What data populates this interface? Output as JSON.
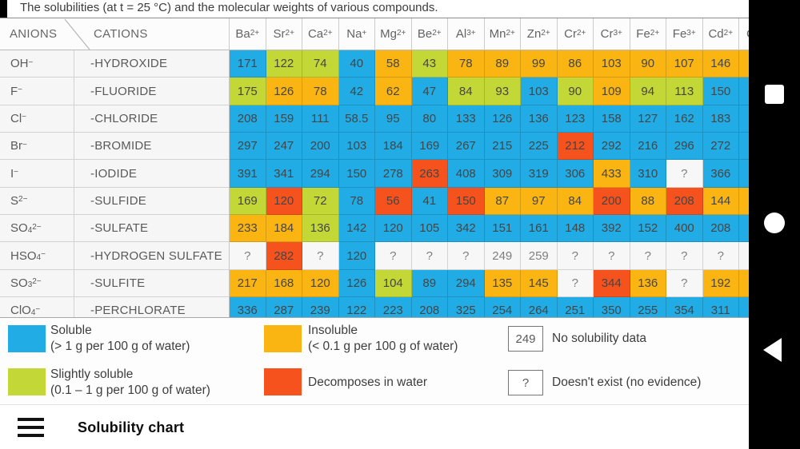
{
  "title": "The solubilities (at t = 25 °C) and the molecular weights of various compounds.",
  "colors": {
    "soluble": "#21ACE5",
    "slightly_soluble": "#C3D836",
    "insoluble": "#FBB513",
    "decomposes": "#F6521E",
    "no_data_bg": "#F7F7F7",
    "nav_bar": "#000000"
  },
  "table": {
    "corner": {
      "anions": "ANIONS",
      "cations": "CATIONS"
    },
    "cations": [
      {
        "base": "Ba",
        "sup": "2+"
      },
      {
        "base": "Sr",
        "sup": "2+"
      },
      {
        "base": "Ca",
        "sup": "2+"
      },
      {
        "base": "Na",
        "sup": "+"
      },
      {
        "base": "Mg",
        "sup": "2+"
      },
      {
        "base": "Be",
        "sup": "2+"
      },
      {
        "base": "Al",
        "sup": "3+"
      },
      {
        "base": "Mn",
        "sup": "2+"
      },
      {
        "base": "Zn",
        "sup": "2+"
      },
      {
        "base": "Cr",
        "sup": "2+"
      },
      {
        "base": "Cr",
        "sup": "3+"
      },
      {
        "base": "Fe",
        "sup": "2+"
      },
      {
        "base": "Fe",
        "sup": "3+"
      },
      {
        "base": "Cd",
        "sup": "2+"
      },
      {
        "base": "C",
        "sup": ""
      }
    ],
    "legend_codes": {
      "S": "soluble",
      "G": "slightly soluble",
      "I": "insoluble",
      "D": "decomposes in water",
      "N": "no solubility data",
      "E": "doesn't exist"
    },
    "rows": [
      {
        "ion": {
          "base": "OH",
          "sub": "",
          "sup": "−"
        },
        "name": "-HYDROXIDE",
        "values": [
          "171",
          "122",
          "74",
          "40",
          "58",
          "43",
          "78",
          "89",
          "99",
          "86",
          "103",
          "90",
          "107",
          "146",
          ""
        ],
        "codes": [
          "S",
          "G",
          "G",
          "S",
          "I",
          "G",
          "I",
          "I",
          "I",
          "I",
          "I",
          "I",
          "I",
          "I",
          "I"
        ]
      },
      {
        "ion": {
          "base": "F",
          "sub": "",
          "sup": "−"
        },
        "name": "-FLUORIDE",
        "values": [
          "175",
          "126",
          "78",
          "42",
          "62",
          "47",
          "84",
          "93",
          "103",
          "90",
          "109",
          "94",
          "113",
          "150",
          ""
        ],
        "codes": [
          "G",
          "I",
          "I",
          "S",
          "I",
          "S",
          "G",
          "G",
          "S",
          "G",
          "I",
          "G",
          "G",
          "S",
          "S"
        ]
      },
      {
        "ion": {
          "base": "Cl",
          "sub": "",
          "sup": "−"
        },
        "name": "-CHLORIDE",
        "values": [
          "208",
          "159",
          "111",
          "58.5",
          "95",
          "80",
          "133",
          "126",
          "136",
          "123",
          "158",
          "127",
          "162",
          "183",
          ""
        ],
        "codes": [
          "S",
          "S",
          "S",
          "S",
          "S",
          "S",
          "S",
          "S",
          "S",
          "S",
          "S",
          "S",
          "S",
          "S",
          "S"
        ]
      },
      {
        "ion": {
          "base": "Br",
          "sub": "",
          "sup": "−"
        },
        "name": "-BROMIDE",
        "values": [
          "297",
          "247",
          "200",
          "103",
          "184",
          "169",
          "267",
          "215",
          "225",
          "212",
          "292",
          "216",
          "296",
          "272",
          ""
        ],
        "codes": [
          "S",
          "S",
          "S",
          "S",
          "S",
          "S",
          "S",
          "S",
          "S",
          "D",
          "S",
          "S",
          "S",
          "S",
          "S"
        ]
      },
      {
        "ion": {
          "base": "I",
          "sub": "",
          "sup": "−"
        },
        "name": "-IODIDE",
        "values": [
          "391",
          "341",
          "294",
          "150",
          "278",
          "263",
          "408",
          "309",
          "319",
          "306",
          "433",
          "310",
          "?",
          "366",
          ""
        ],
        "codes": [
          "S",
          "S",
          "S",
          "S",
          "S",
          "D",
          "S",
          "S",
          "S",
          "S",
          "I",
          "S",
          "E",
          "S",
          "S"
        ]
      },
      {
        "ion": {
          "base": "S",
          "sub": "",
          "sup": "2−"
        },
        "name": "-SULFIDE",
        "values": [
          "169",
          "120",
          "72",
          "78",
          "56",
          "41",
          "150",
          "87",
          "97",
          "84",
          "200",
          "88",
          "208",
          "144",
          ""
        ],
        "codes": [
          "G",
          "D",
          "G",
          "S",
          "D",
          "S",
          "D",
          "I",
          "I",
          "I",
          "D",
          "I",
          "D",
          "I",
          "I"
        ]
      },
      {
        "ion": {
          "base": "SO",
          "sub": "4",
          "sup": "2−"
        },
        "name": "-SULFATE",
        "values": [
          "233",
          "184",
          "136",
          "142",
          "120",
          "105",
          "342",
          "151",
          "161",
          "148",
          "392",
          "152",
          "400",
          "208",
          ""
        ],
        "codes": [
          "I",
          "I",
          "G",
          "S",
          "S",
          "S",
          "S",
          "S",
          "S",
          "S",
          "S",
          "S",
          "S",
          "S",
          "S"
        ]
      },
      {
        "ion": {
          "base": "HSO",
          "sub": "4",
          "sup": "−"
        },
        "name": "-HYDROGEN SULFATE",
        "values": [
          "?",
          "282",
          "?",
          "120",
          "?",
          "?",
          "?",
          "249",
          "259",
          "?",
          "?",
          "?",
          "?",
          "?",
          ""
        ],
        "codes": [
          "E",
          "D",
          "E",
          "S",
          "E",
          "E",
          "E",
          "N",
          "N",
          "E",
          "E",
          "E",
          "E",
          "E",
          "N"
        ]
      },
      {
        "ion": {
          "base": "SO",
          "sub": "3",
          "sup": "2−"
        },
        "name": "-SULFITE",
        "values": [
          "217",
          "168",
          "120",
          "126",
          "104",
          "89",
          "294",
          "135",
          "145",
          "?",
          "344",
          "136",
          "?",
          "192",
          ""
        ],
        "codes": [
          "I",
          "I",
          "I",
          "S",
          "G",
          "S",
          "S",
          "I",
          "I",
          "E",
          "D",
          "I",
          "E",
          "I",
          "I"
        ]
      },
      {
        "ion": {
          "base": "ClO",
          "sub": "4",
          "sup": "−"
        },
        "name": "-PERCHLORATE",
        "values": [
          "336",
          "287",
          "239",
          "122",
          "223",
          "208",
          "325",
          "254",
          "264",
          "251",
          "350",
          "255",
          "354",
          "311",
          ""
        ],
        "codes": [
          "S",
          "S",
          "S",
          "S",
          "S",
          "S",
          "S",
          "S",
          "S",
          "S",
          "S",
          "S",
          "S",
          "S",
          "S"
        ]
      }
    ]
  },
  "legend": {
    "soluble": {
      "label": "Soluble",
      "sub": "(> 1 g per 100 g of water)"
    },
    "slightly": {
      "label": "Slightly soluble",
      "sub": "(0.1 – 1 g per 100 g of water)"
    },
    "insoluble": {
      "label": "Insoluble",
      "sub": "(< 0.1 g per 100 g of water)"
    },
    "decomposes": {
      "label": "Decomposes in water"
    },
    "no_data": {
      "box": "249",
      "label": "No solubility data"
    },
    "not_exist": {
      "box": "?",
      "label": "Doesn't exist (no evidence)"
    }
  },
  "bottom_bar": {
    "title": "Solubility chart"
  }
}
